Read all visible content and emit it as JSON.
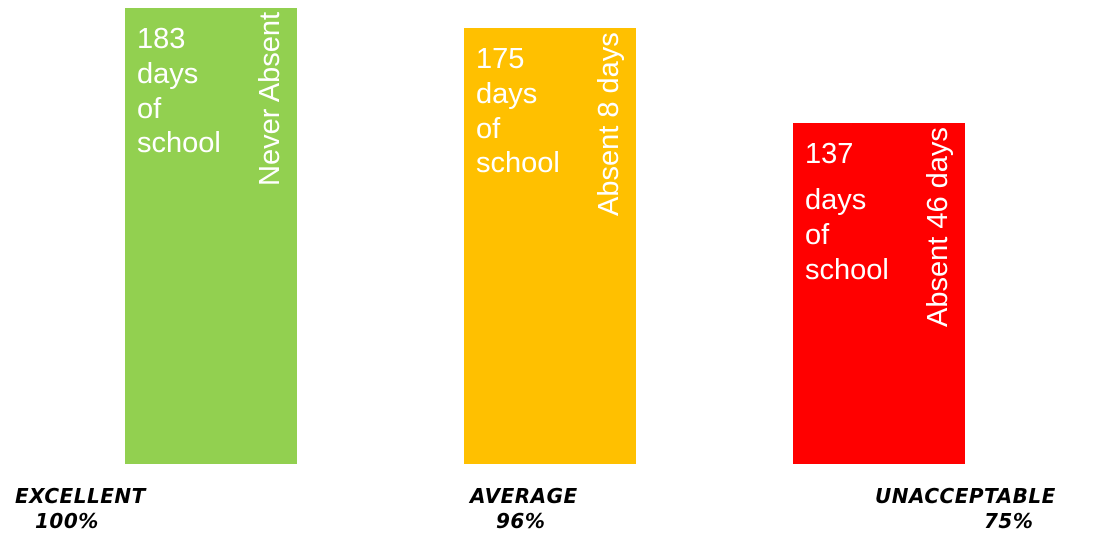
{
  "chart_data": {
    "type": "bar",
    "ylim": [
      0,
      183
    ],
    "bars": [
      {
        "category": "EXCELLENT",
        "percent_label": "100%",
        "value": 183,
        "days_lines": [
          "183",
          "days",
          "of",
          "school"
        ],
        "absent_label": "Never Absent",
        "color": "#92D050"
      },
      {
        "category": "AVERAGE",
        "percent_label": "96%",
        "value": 175,
        "days_lines": [
          "175",
          "days",
          "of",
          "school"
        ],
        "absent_label": "Absent 8 days",
        "color": "#FFC000"
      },
      {
        "category": "UNACCEPTABLE",
        "percent_label": "75%",
        "value": 137,
        "days_lines": [
          "137",
          "days",
          "of",
          "school"
        ],
        "absent_label": "Absent 46 days",
        "color": "#FF0000"
      }
    ]
  }
}
